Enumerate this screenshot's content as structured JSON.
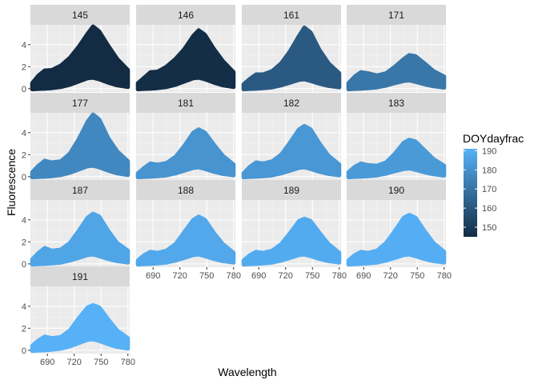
{
  "chart_data": {
    "type": "area",
    "facets": [
      "145",
      "146",
      "161",
      "171",
      "177",
      "181",
      "182",
      "183",
      "187",
      "188",
      "189",
      "190",
      "191"
    ],
    "facet_values": [
      145,
      146,
      161,
      171,
      177,
      181,
      182,
      183,
      187,
      188,
      189,
      190,
      191
    ],
    "xlabel": "Wavelength",
    "ylabel": "Fluorescence",
    "xlim": [
      671,
      782
    ],
    "ylim": [
      -0.3,
      5.8
    ],
    "x_ticks": [
      690,
      720,
      750,
      780
    ],
    "y_ticks": [
      0,
      2,
      4
    ],
    "x": [
      673,
      680,
      687,
      695,
      705,
      715,
      725,
      735,
      741,
      748,
      758,
      768,
      780
    ],
    "upper_series": [
      {
        "facet": "145",
        "values": [
          0.5,
          1.2,
          1.65,
          1.7,
          2.1,
          2.8,
          3.8,
          5.0,
          5.65,
          5.2,
          3.9,
          2.7,
          1.7
        ]
      },
      {
        "facet": "146",
        "values": [
          0.5,
          1.0,
          1.5,
          1.55,
          2.0,
          2.7,
          3.6,
          4.8,
          5.3,
          4.9,
          3.6,
          2.5,
          1.5
        ]
      },
      {
        "facet": "161",
        "values": [
          0.4,
          0.9,
          1.3,
          1.3,
          1.6,
          2.3,
          3.4,
          4.8,
          5.55,
          5.1,
          3.5,
          2.3,
          1.4
        ]
      },
      {
        "facet": "171",
        "values": [
          0.5,
          1.1,
          1.5,
          1.4,
          1.2,
          1.4,
          2.0,
          2.7,
          3.05,
          2.95,
          2.3,
          1.6,
          1.1
        ]
      },
      {
        "facet": "177",
        "values": [
          0.4,
          1.0,
          1.45,
          1.3,
          1.4,
          2.1,
          3.4,
          5.0,
          5.65,
          5.2,
          3.5,
          2.3,
          1.4
        ]
      },
      {
        "facet": "181",
        "values": [
          0.3,
          0.8,
          1.2,
          1.1,
          1.25,
          1.8,
          2.8,
          4.0,
          4.3,
          4.0,
          2.9,
          1.9,
          1.1
        ]
      },
      {
        "facet": "182",
        "values": [
          0.3,
          0.9,
          1.3,
          1.2,
          1.4,
          2.0,
          3.1,
          4.3,
          4.6,
          4.3,
          3.0,
          1.9,
          1.1
        ]
      },
      {
        "facet": "183",
        "values": [
          0.4,
          0.9,
          1.2,
          1.05,
          1.0,
          1.3,
          2.1,
          3.1,
          3.35,
          3.2,
          2.4,
          1.6,
          1.0
        ]
      },
      {
        "facet": "187",
        "values": [
          0.4,
          1.0,
          1.45,
          1.2,
          1.3,
          1.9,
          3.0,
          4.2,
          4.55,
          4.3,
          3.0,
          1.9,
          1.2
        ]
      },
      {
        "facet": "188",
        "values": [
          0.3,
          0.8,
          1.1,
          1.0,
          1.2,
          1.8,
          2.9,
          4.0,
          4.3,
          4.0,
          2.8,
          1.8,
          1.0
        ]
      },
      {
        "facet": "189",
        "values": [
          0.3,
          0.8,
          1.1,
          1.0,
          1.2,
          1.8,
          2.8,
          3.9,
          4.1,
          3.9,
          2.8,
          1.8,
          1.0
        ]
      },
      {
        "facet": "190",
        "values": [
          0.3,
          0.8,
          1.1,
          1.0,
          1.2,
          1.9,
          3.0,
          4.2,
          4.45,
          4.2,
          3.0,
          1.9,
          1.1
        ]
      },
      {
        "facet": "191",
        "values": [
          0.4,
          0.9,
          1.25,
          1.1,
          1.2,
          1.8,
          2.9,
          3.9,
          4.1,
          3.9,
          2.8,
          1.8,
          1.1
        ]
      }
    ],
    "lower_series": [
      {
        "facet": "145",
        "values": [
          -0.05,
          -0.02,
          0.0,
          0.05,
          0.15,
          0.35,
          0.65,
          0.95,
          1.0,
          0.85,
          0.55,
          0.3,
          0.15
        ]
      },
      {
        "facet": "146",
        "values": [
          -0.05,
          -0.02,
          0.0,
          0.05,
          0.15,
          0.35,
          0.65,
          0.95,
          1.0,
          0.85,
          0.55,
          0.3,
          0.15
        ]
      },
      {
        "facet": "161",
        "values": [
          -0.05,
          -0.02,
          0.0,
          0.05,
          0.12,
          0.3,
          0.55,
          0.8,
          0.85,
          0.7,
          0.45,
          0.25,
          0.12
        ]
      },
      {
        "facet": "171",
        "values": [
          -0.05,
          -0.02,
          0.0,
          0.05,
          0.12,
          0.28,
          0.5,
          0.7,
          0.75,
          0.62,
          0.4,
          0.22,
          0.1
        ]
      },
      {
        "facet": "177",
        "values": [
          -0.05,
          -0.02,
          0.0,
          0.05,
          0.15,
          0.35,
          0.65,
          0.95,
          1.0,
          0.85,
          0.55,
          0.3,
          0.15
        ]
      },
      {
        "facet": "181",
        "values": [
          -0.05,
          -0.02,
          0.0,
          0.05,
          0.12,
          0.3,
          0.55,
          0.8,
          0.85,
          0.7,
          0.45,
          0.25,
          0.12
        ]
      },
      {
        "facet": "182",
        "values": [
          -0.05,
          -0.02,
          0.0,
          0.05,
          0.12,
          0.3,
          0.55,
          0.8,
          0.85,
          0.7,
          0.45,
          0.25,
          0.12
        ]
      },
      {
        "facet": "183",
        "values": [
          -0.05,
          -0.02,
          0.0,
          0.05,
          0.12,
          0.28,
          0.5,
          0.7,
          0.75,
          0.62,
          0.4,
          0.22,
          0.1
        ]
      },
      {
        "facet": "187",
        "values": [
          -0.05,
          -0.02,
          0.0,
          0.05,
          0.12,
          0.3,
          0.55,
          0.8,
          0.85,
          0.7,
          0.45,
          0.25,
          0.12
        ]
      },
      {
        "facet": "188",
        "values": [
          -0.05,
          -0.02,
          0.0,
          0.05,
          0.12,
          0.3,
          0.55,
          0.8,
          0.85,
          0.7,
          0.45,
          0.25,
          0.12
        ]
      },
      {
        "facet": "189",
        "values": [
          -0.05,
          -0.02,
          0.0,
          0.05,
          0.12,
          0.3,
          0.55,
          0.8,
          0.85,
          0.7,
          0.45,
          0.25,
          0.12
        ]
      },
      {
        "facet": "190",
        "values": [
          -0.05,
          -0.02,
          0.0,
          0.05,
          0.12,
          0.3,
          0.55,
          0.8,
          0.85,
          0.7,
          0.45,
          0.25,
          0.12
        ]
      },
      {
        "facet": "191",
        "values": [
          -0.05,
          -0.02,
          0.0,
          0.05,
          0.15,
          0.35,
          0.65,
          0.95,
          1.0,
          0.85,
          0.55,
          0.3,
          0.15
        ]
      }
    ],
    "legend": {
      "title": "DOYdayfrac",
      "ticks": [
        150,
        160,
        170,
        180,
        190
      ],
      "range": [
        145,
        191
      ],
      "low_color": "#132B43",
      "high_color": "#56B1F7",
      "placement": "right"
    },
    "grid": true,
    "layout": "facet_wrap, 4 columns"
  }
}
